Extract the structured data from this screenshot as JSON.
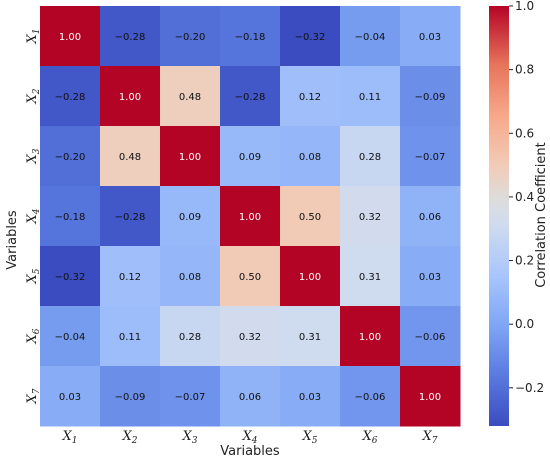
{
  "chart_data": {
    "type": "heatmap",
    "title": "",
    "xlabel": "Variables",
    "ylabel": "Variables",
    "x_categories": [
      "X1",
      "X2",
      "X3",
      "X4",
      "X5",
      "X6",
      "X7"
    ],
    "y_categories": [
      "X1",
      "X2",
      "X3",
      "X4",
      "X5",
      "X6",
      "X7"
    ],
    "values": [
      [
        1.0,
        -0.28,
        -0.2,
        -0.18,
        -0.32,
        -0.04,
        0.03
      ],
      [
        -0.28,
        1.0,
        0.48,
        -0.28,
        0.12,
        0.11,
        -0.09
      ],
      [
        -0.2,
        0.48,
        1.0,
        0.09,
        0.08,
        0.28,
        -0.07
      ],
      [
        -0.18,
        -0.28,
        0.09,
        1.0,
        0.5,
        0.32,
        0.06
      ],
      [
        -0.32,
        0.12,
        0.08,
        0.5,
        1.0,
        0.31,
        0.03
      ],
      [
        -0.04,
        0.11,
        0.28,
        0.32,
        0.31,
        1.0,
        -0.06
      ],
      [
        0.03,
        -0.09,
        -0.07,
        0.06,
        0.03,
        -0.06,
        1.0
      ]
    ],
    "colorbar": {
      "label": "Correlation Coefficient",
      "range": [
        -0.32,
        1.0
      ],
      "ticks": [
        1.0,
        0.8,
        0.6,
        0.4,
        0.2,
        0.0,
        -0.2
      ],
      "colormap": "coolwarm"
    }
  }
}
